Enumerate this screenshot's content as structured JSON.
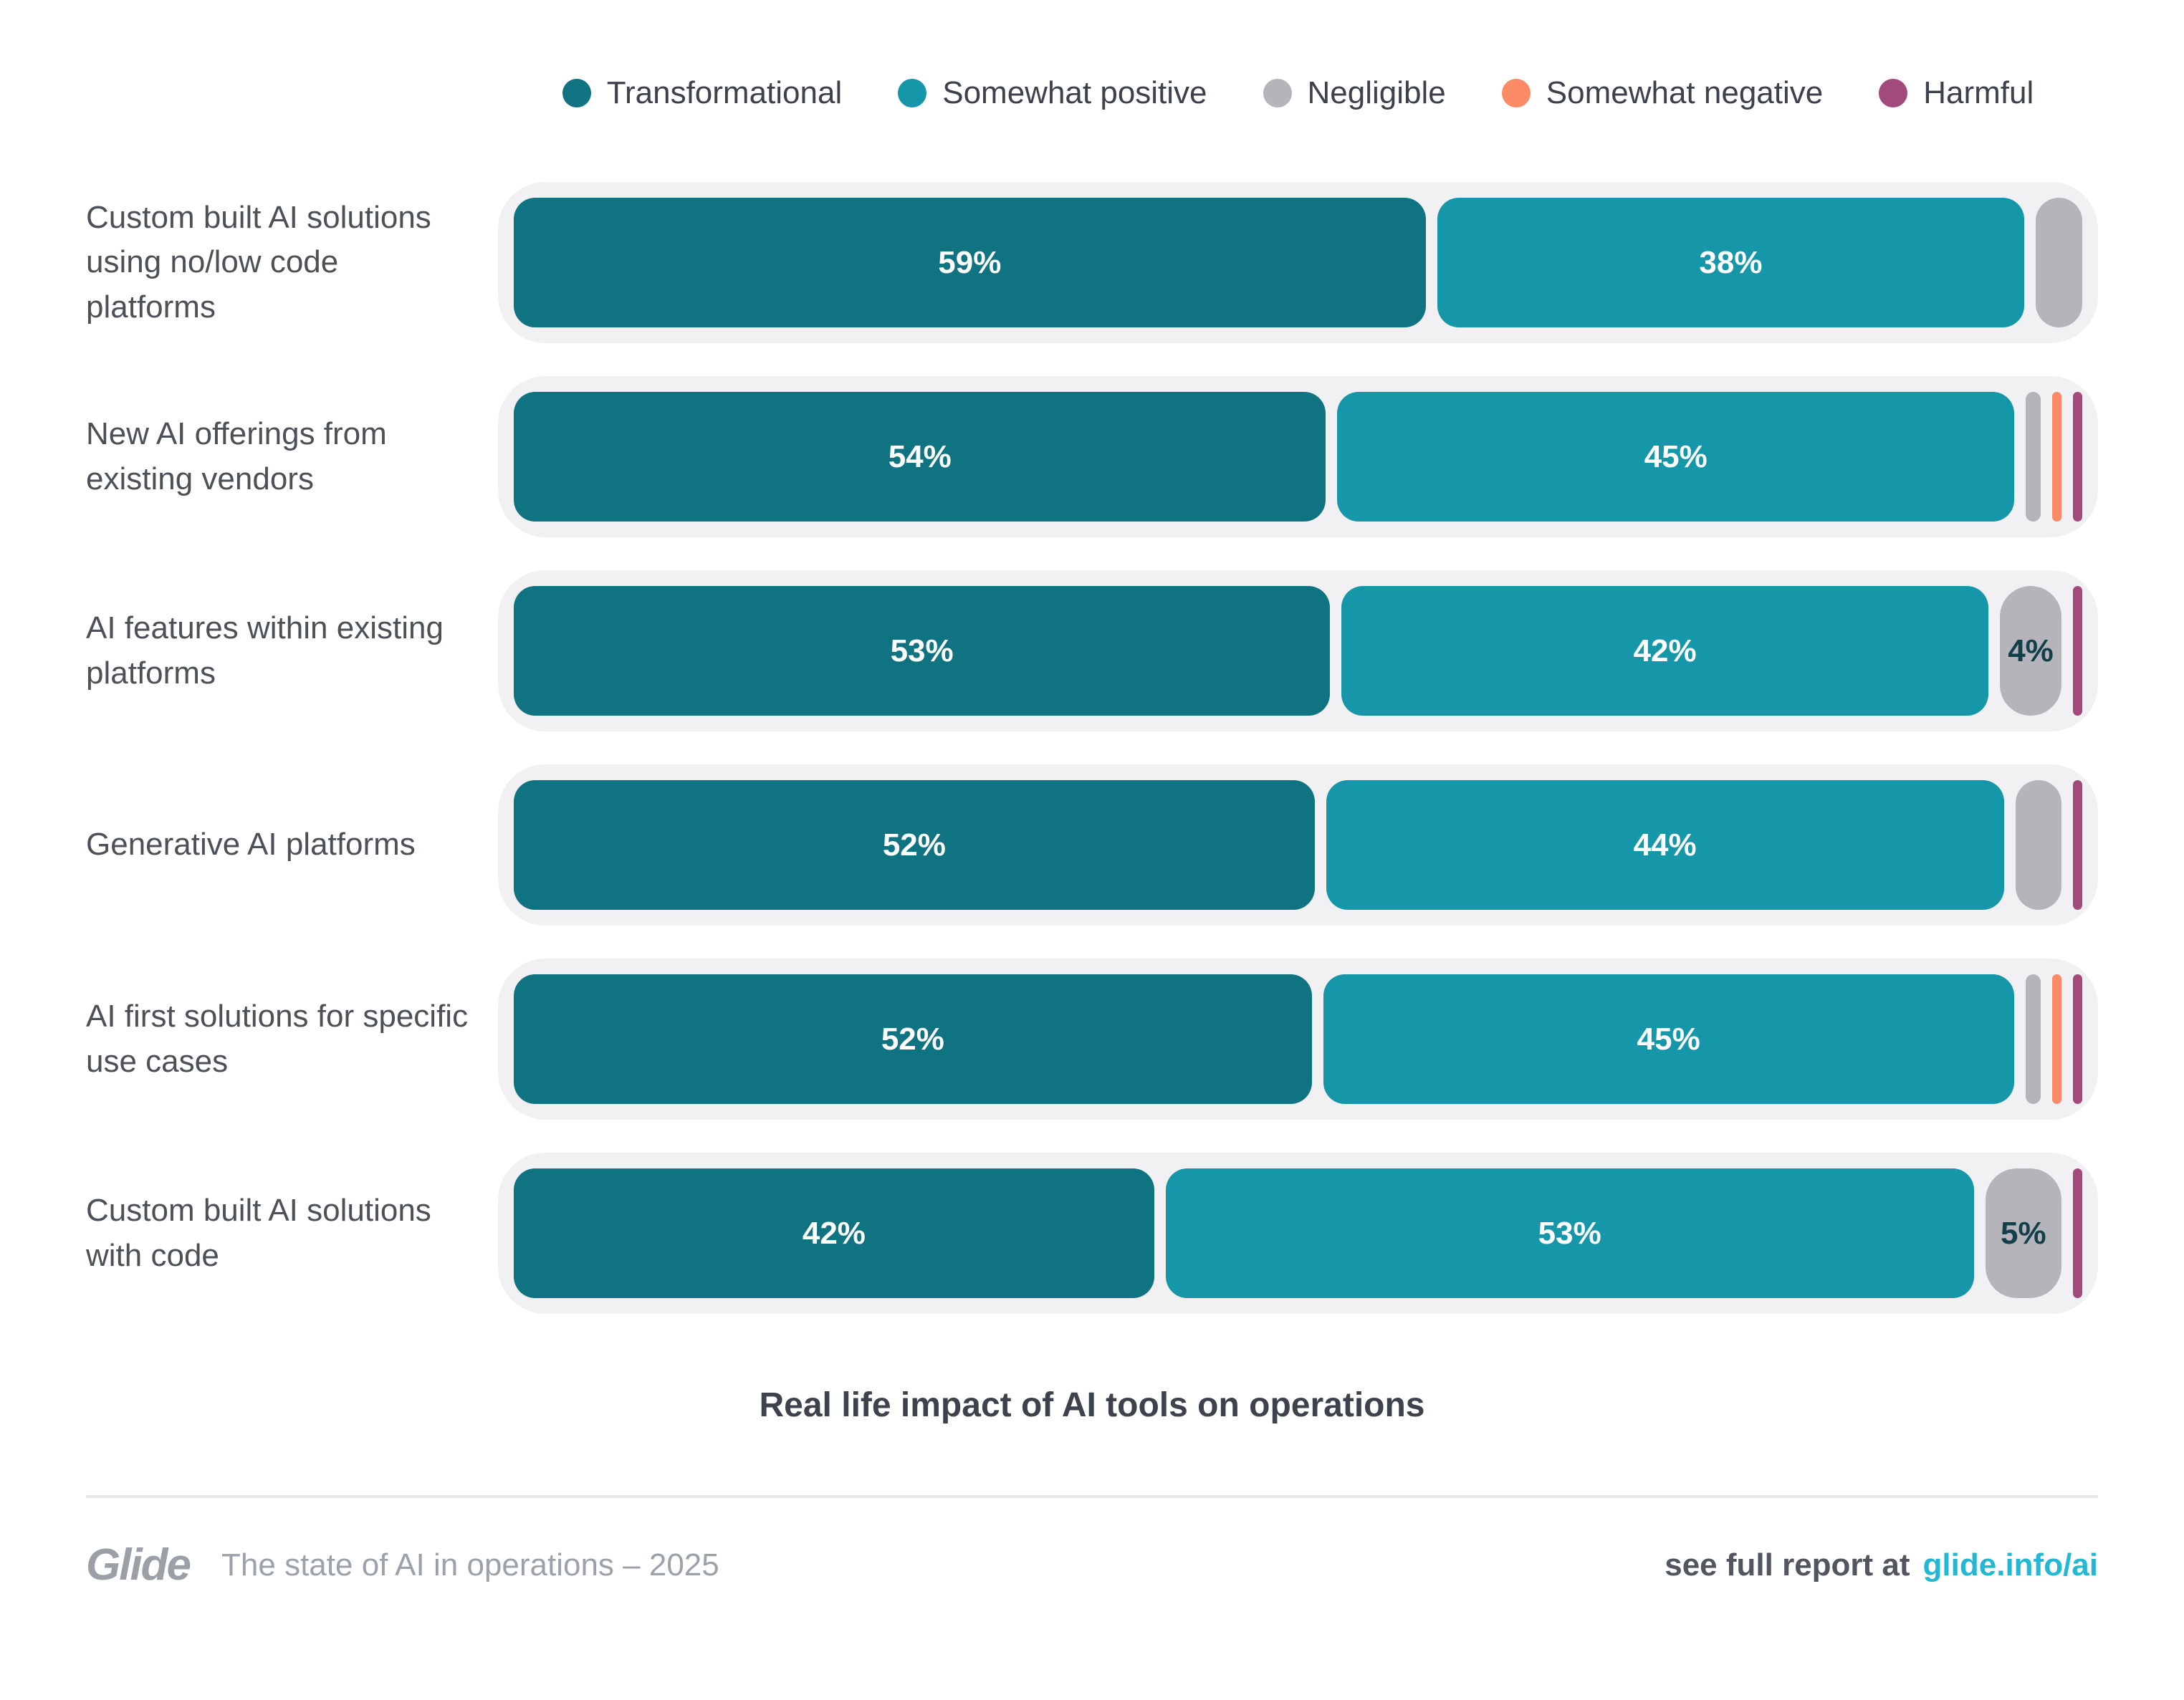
{
  "colors": {
    "transformational": "#107381",
    "somewhat_positive": "#1697a9",
    "negligible": "#b5b4ba",
    "somewhat_negative": "#fb8a66",
    "harmful": "#a34a7d",
    "track_bg": "#f1f1f3",
    "link": "#24b7d3"
  },
  "legend": [
    {
      "key": "transformational",
      "label": "Transformational"
    },
    {
      "key": "somewhat_positive",
      "label": "Somewhat positive"
    },
    {
      "key": "negligible",
      "label": "Negligible"
    },
    {
      "key": "somewhat_negative",
      "label": "Somewhat negative"
    },
    {
      "key": "harmful",
      "label": "Harmful"
    }
  ],
  "rows": [
    {
      "label": "Custom built AI solutions using no/low code platforms",
      "segments": [
        {
          "key": "transformational",
          "value": 59,
          "label": "59%"
        },
        {
          "key": "somewhat_positive",
          "value": 38,
          "label": "38%"
        },
        {
          "key": "negligible",
          "value": 3,
          "label": ""
        }
      ]
    },
    {
      "label": "New AI offerings from existing vendors",
      "segments": [
        {
          "key": "transformational",
          "value": 54,
          "label": "54%"
        },
        {
          "key": "somewhat_positive",
          "value": 45,
          "label": "45%"
        },
        {
          "key": "negligible",
          "value": 1,
          "label": ""
        },
        {
          "key": "somewhat_negative",
          "value": 0.6,
          "label": ""
        },
        {
          "key": "harmful",
          "value": 0.6,
          "label": ""
        }
      ]
    },
    {
      "label": "AI features within existing platforms",
      "segments": [
        {
          "key": "transformational",
          "value": 53,
          "label": "53%"
        },
        {
          "key": "somewhat_positive",
          "value": 42,
          "label": "42%"
        },
        {
          "key": "negligible",
          "value": 4,
          "label": "4%"
        },
        {
          "key": "harmful",
          "value": 0.6,
          "label": ""
        }
      ]
    },
    {
      "label": "Generative AI platforms",
      "segments": [
        {
          "key": "transformational",
          "value": 52,
          "label": "52%"
        },
        {
          "key": "somewhat_positive",
          "value": 44,
          "label": "44%"
        },
        {
          "key": "negligible",
          "value": 3,
          "label": ""
        },
        {
          "key": "harmful",
          "value": 0.6,
          "label": ""
        }
      ]
    },
    {
      "label": "AI first solutions for specific use cases",
      "segments": [
        {
          "key": "transformational",
          "value": 52,
          "label": "52%"
        },
        {
          "key": "somewhat_positive",
          "value": 45,
          "label": "45%"
        },
        {
          "key": "negligible",
          "value": 1,
          "label": ""
        },
        {
          "key": "somewhat_negative",
          "value": 0.6,
          "label": ""
        },
        {
          "key": "harmful",
          "value": 0.6,
          "label": ""
        }
      ]
    },
    {
      "label": "Custom built AI solutions with code",
      "segments": [
        {
          "key": "transformational",
          "value": 42,
          "label": "42%"
        },
        {
          "key": "somewhat_positive",
          "value": 53,
          "label": "53%"
        },
        {
          "key": "negligible",
          "value": 5,
          "label": "5%"
        },
        {
          "key": "harmful",
          "value": 0.6,
          "label": ""
        }
      ]
    }
  ],
  "title": "Real life impact of AI tools on operations",
  "footer": {
    "brand": "Glide",
    "tagline": "The state of AI in operations – 2025",
    "report_prefix": "see full report at",
    "report_link": "glide.info/ai"
  },
  "chart_data": {
    "type": "bar",
    "orientation": "horizontal_stacked",
    "title": "Real life impact of AI tools on operations",
    "value_format": "percent",
    "axis_ticks": "none",
    "grid": false,
    "legend_position": "top",
    "categories": [
      "Custom built AI solutions using no/low code platforms",
      "New AI offerings from existing vendors",
      "AI features within existing platforms",
      "Generative AI platforms",
      "AI first solutions for specific use cases",
      "Custom built AI solutions with code"
    ],
    "series": [
      {
        "name": "Transformational",
        "color": "#107381",
        "values": [
          59,
          54,
          53,
          52,
          52,
          42
        ]
      },
      {
        "name": "Somewhat positive",
        "color": "#1697a9",
        "values": [
          38,
          45,
          42,
          44,
          45,
          53
        ]
      },
      {
        "name": "Negligible",
        "color": "#b5b4ba",
        "values": [
          3,
          1,
          4,
          3,
          1,
          5
        ]
      },
      {
        "name": "Somewhat negative",
        "color": "#fb8a66",
        "values": [
          0,
          1,
          0,
          0,
          1,
          0
        ]
      },
      {
        "name": "Harmful",
        "color": "#a34a7d",
        "values": [
          0,
          1,
          1,
          1,
          1,
          1
        ]
      }
    ],
    "labeled_values": {
      "shown_on_bars": [
        "59%",
        "38%",
        "54%",
        "45%",
        "53%",
        "42%",
        "4%",
        "52%",
        "44%",
        "52%",
        "45%",
        "42%",
        "53%",
        "5%"
      ]
    }
  }
}
